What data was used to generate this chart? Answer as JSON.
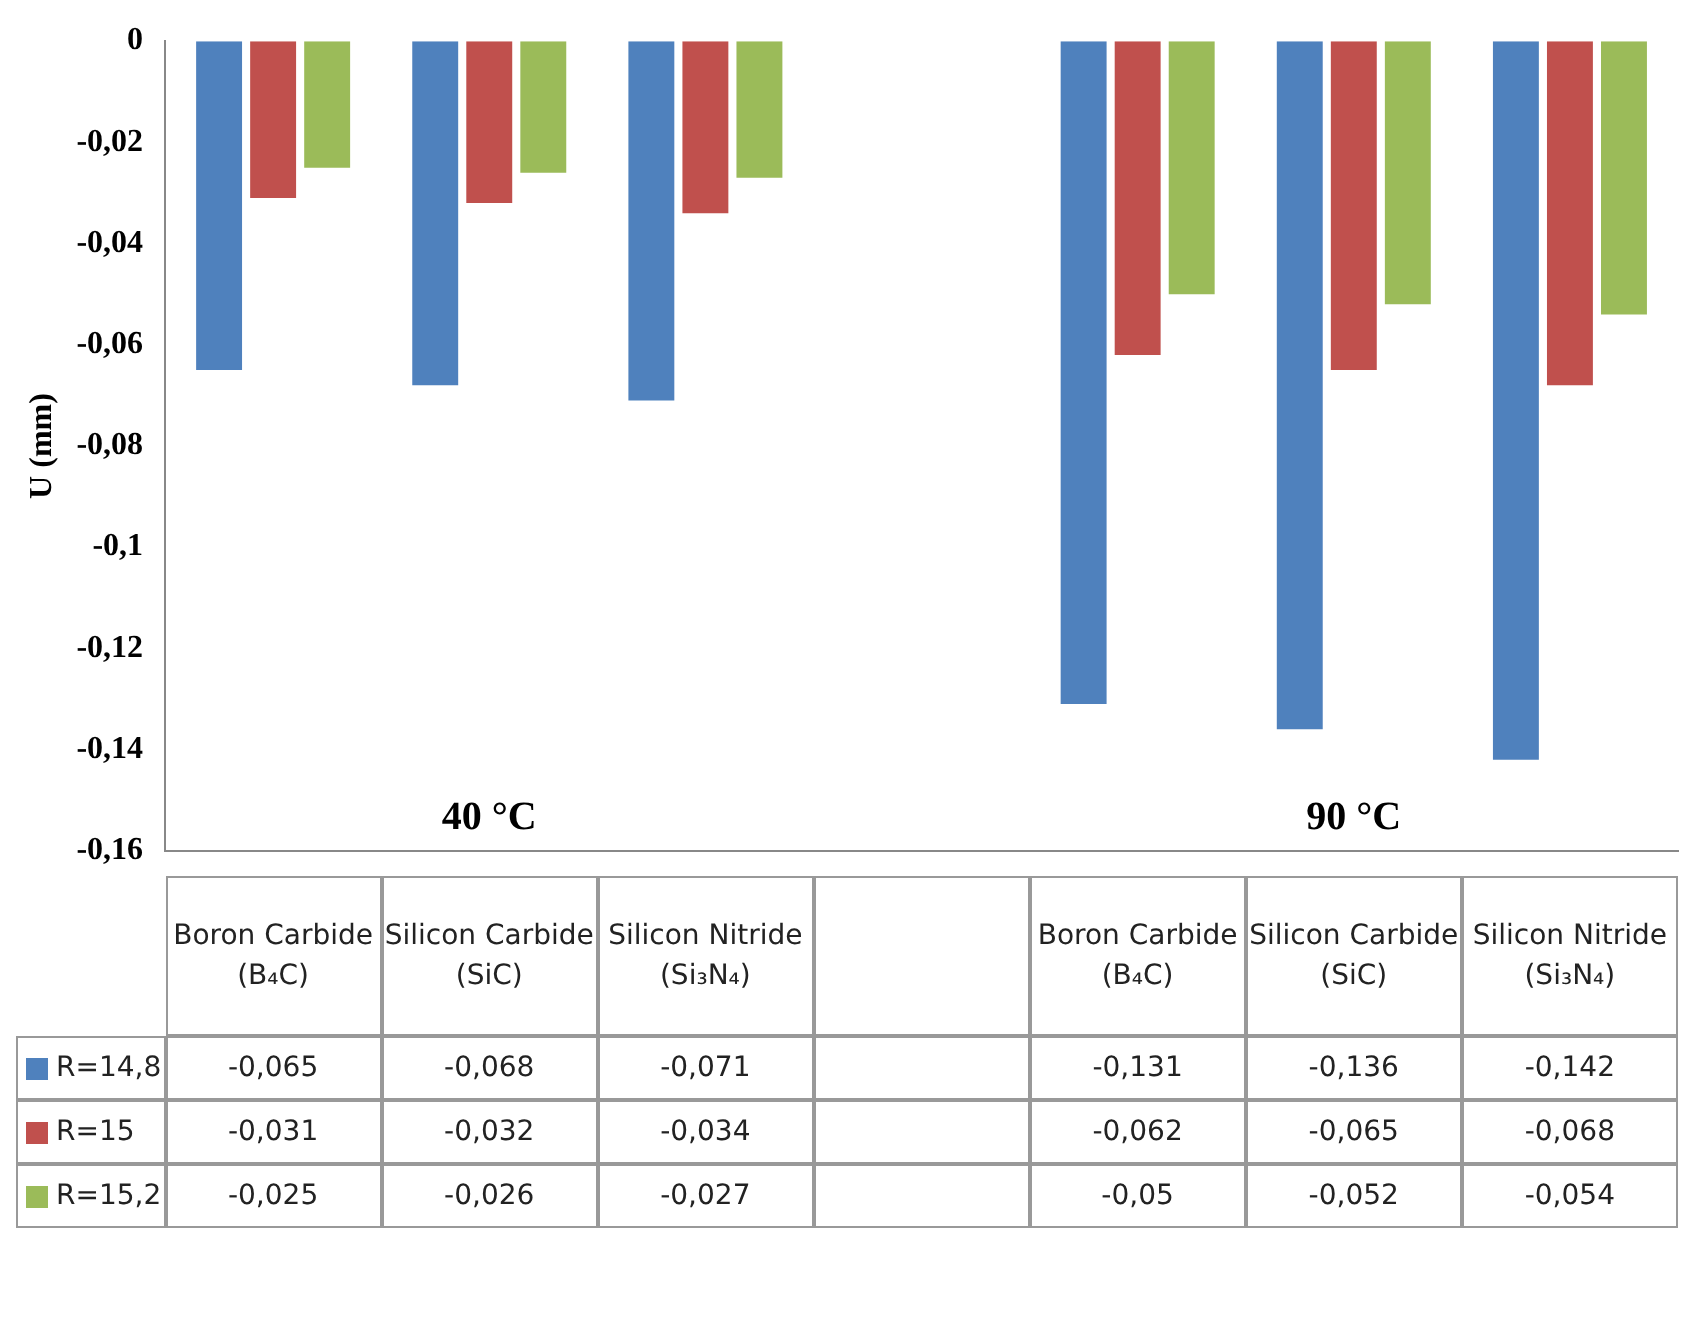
{
  "chart_data": {
    "type": "bar",
    "ylabel": "U (mm)",
    "categories": [
      "Boron Carbide (B₄C)",
      "Silicon Carbide (SiC)",
      "Silicon Nitride (Si₃N₄)",
      null,
      "Boron Carbide (B₄C)",
      "Silicon Carbide (SiC)",
      "Silicon Nitride (Si₃N₄)"
    ],
    "series": [
      {
        "name": "R=14,8",
        "color": "#4f81bd",
        "values": [
          -0.065,
          -0.068,
          -0.071,
          null,
          -0.131,
          -0.136,
          -0.142
        ],
        "value_labels": [
          "-0,065",
          "-0,068",
          "-0,071",
          null,
          "-0,131",
          "-0,136",
          "-0,142"
        ]
      },
      {
        "name": "R=15",
        "color": "#c0504d",
        "values": [
          -0.031,
          -0.032,
          -0.034,
          null,
          -0.062,
          -0.065,
          -0.068
        ],
        "value_labels": [
          "-0,031",
          "-0,032",
          "-0,034",
          null,
          "-0,062",
          "-0,065",
          "-0,068"
        ]
      },
      {
        "name": "R=15,2",
        "color": "#9bbb59",
        "values": [
          -0.025,
          -0.026,
          -0.027,
          null,
          -0.05,
          -0.052,
          -0.054
        ],
        "value_labels": [
          "-0,025",
          "-0,026",
          "-0,027",
          null,
          "-0,05",
          "-0,052",
          "-0,054"
        ]
      }
    ],
    "ylim": [
      -0.16,
      0
    ],
    "yticks": [
      {
        "value": 0,
        "label": "0"
      },
      {
        "value": -0.02,
        "label": "-0,02"
      },
      {
        "value": -0.04,
        "label": "-0,04"
      },
      {
        "value": -0.06,
        "label": "-0,06"
      },
      {
        "value": -0.08,
        "label": "-0,08"
      },
      {
        "value": -0.1,
        "label": "-0,1"
      },
      {
        "value": -0.12,
        "label": "-0,12"
      },
      {
        "value": -0.14,
        "label": "-0,14"
      },
      {
        "value": -0.16,
        "label": "-0,16"
      }
    ],
    "annotations": [
      "40 °C",
      "90 °C"
    ],
    "grid": false,
    "legend": "bottom",
    "data_labels": true
  }
}
